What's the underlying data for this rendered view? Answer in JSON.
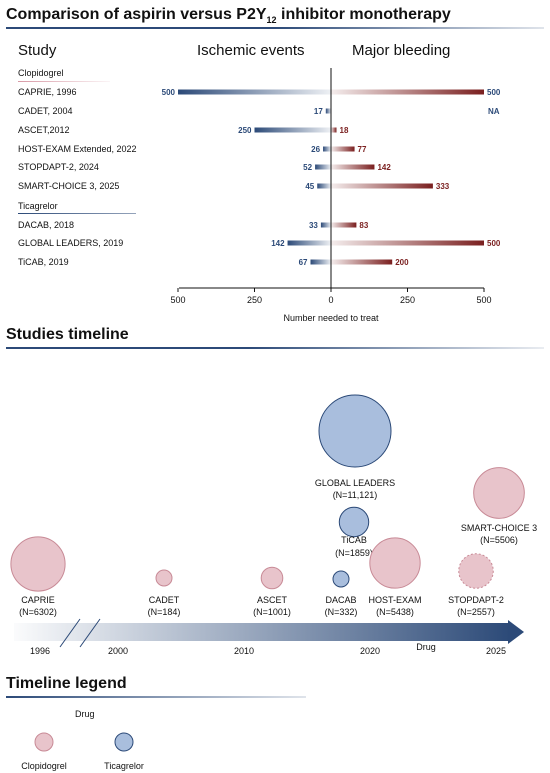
{
  "sections": {
    "comparison_title": "Comparison of aspirin versus P2Y",
    "comparison_title_sub": "12",
    "comparison_title_end": " inhibitor monotherapy",
    "timeline_title": "Studies timeline",
    "legend_title": "Timeline legend"
  },
  "headers": {
    "study": "Study",
    "ischemic": "Ischemic events",
    "bleeding": "Major bleeding"
  },
  "colors": {
    "blue": "#2c4a78",
    "red": "#7a1f1f",
    "clopidogrel_fill": "#e8c4cb",
    "clopidogrel_stroke": "#c88a96",
    "ticagrelor_fill": "#a9bedd",
    "ticagrelor_stroke": "#2c4a78"
  },
  "chart_data": [
    {
      "type": "bar",
      "xlabel": "Number needed to treat",
      "xlim": [
        -500,
        500
      ],
      "xticks": [
        {
          "value": -500,
          "label": "500"
        },
        {
          "value": -250,
          "label": "250"
        },
        {
          "value": 0,
          "label": "0"
        },
        {
          "value": 250,
          "label": "250"
        },
        {
          "value": 500,
          "label": "500"
        }
      ],
      "groups": [
        {
          "name": "Clopidogrel",
          "rows": [
            {
              "study": "CAPRIE, 1996",
              "ischemic": 500,
              "bleeding": 500,
              "ischemic_label": "500",
              "bleeding_label": "500"
            },
            {
              "study": "CADET, 2004",
              "ischemic": 17,
              "bleeding": null,
              "ischemic_label": "17",
              "bleeding_label": "NA"
            },
            {
              "study": "ASCET,2012",
              "ischemic": 250,
              "bleeding": 18,
              "ischemic_label": "250",
              "bleeding_label": "18"
            },
            {
              "study": "HOST-EXAM Extended, 2022",
              "ischemic": 26,
              "bleeding": 77,
              "ischemic_label": "26",
              "bleeding_label": "77"
            },
            {
              "study": "STOPDAPT-2, 2024",
              "ischemic": 52,
              "bleeding": 142,
              "ischemic_label": "52",
              "bleeding_label": "142"
            },
            {
              "study": "SMART-CHOICE 3, 2025",
              "ischemic": 45,
              "bleeding": 333,
              "ischemic_label": "45",
              "bleeding_label": "333"
            }
          ]
        },
        {
          "name": "Ticagrelor",
          "rows": [
            {
              "study": "DACAB, 2018",
              "ischemic": 33,
              "bleeding": 83,
              "ischemic_label": "33",
              "bleeding_label": "83"
            },
            {
              "study": "GLOBAL LEADERS, 2019",
              "ischemic": 142,
              "bleeding": 500,
              "ischemic_label": "142",
              "bleeding_label": "500"
            },
            {
              "study": "TiCAB, 2019",
              "ischemic": 67,
              "bleeding": 200,
              "ischemic_label": "67",
              "bleeding_label": "200"
            }
          ]
        }
      ]
    },
    {
      "type": "scatter",
      "axis_labels": [
        "1996",
        "2000",
        "2010",
        "2020",
        "2025"
      ],
      "axis_note": "Drug",
      "studies": [
        {
          "name": "CAPRIE",
          "n_label": "(N=6302)",
          "n": 6302,
          "year": 1996,
          "drug": "Clopidogrel"
        },
        {
          "name": "CADET",
          "n_label": "(N=184)",
          "n": 184,
          "year": 2004,
          "drug": "Clopidogrel"
        },
        {
          "name": "ASCET",
          "n_label": "(N=1001)",
          "n": 1001,
          "year": 2012,
          "drug": "Clopidogrel"
        },
        {
          "name": "GLOBAL LEADERS",
          "n_label": "(N=11,121)",
          "n": 11121,
          "year": 2019,
          "drug": "Ticagrelor"
        },
        {
          "name": "TiCAB",
          "n_label": "(N=1859)",
          "n": 1859,
          "year": 2019,
          "drug": "Ticagrelor"
        },
        {
          "name": "DACAB",
          "n_label": "(N=332)",
          "n": 332,
          "year": 2018,
          "drug": "Ticagrelor"
        },
        {
          "name": "HOST-EXAM",
          "n_label": "(N=5438)",
          "n": 5438,
          "year": 2022,
          "drug": "Clopidogrel"
        },
        {
          "name": "STOPDAPT-2",
          "n_label": "(N=2557)",
          "n": 2557,
          "year": 2024,
          "drug": "Clopidogrel",
          "dashed": true
        },
        {
          "name": "SMART-CHOICE 3",
          "n_label": "(N=5506)",
          "n": 5506,
          "year": 2025,
          "drug": "Clopidogrel"
        }
      ]
    }
  ],
  "legend": {
    "title": "Drug",
    "items": [
      {
        "label": "Clopidogrel",
        "drug": "Clopidogrel"
      },
      {
        "label": "Ticagrelor",
        "drug": "Ticagrelor"
      }
    ]
  }
}
